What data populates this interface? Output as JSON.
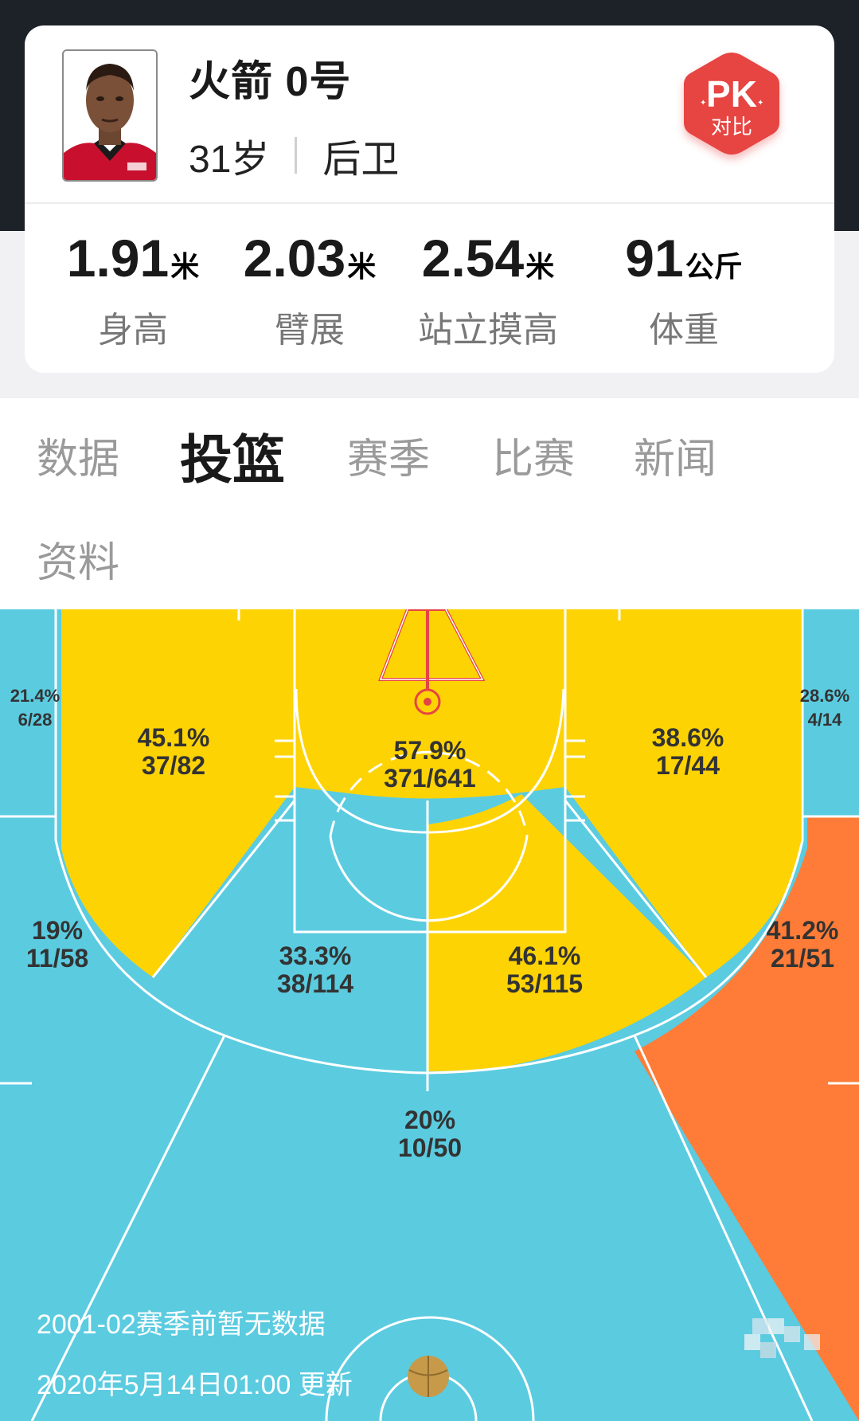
{
  "player": {
    "name": "火箭 0号",
    "age": "31岁",
    "position": "后卫"
  },
  "pk_button": {
    "top": "PK",
    "bottom": "对比"
  },
  "stats": [
    {
      "value": "1.91",
      "unit": "米",
      "label": "身高"
    },
    {
      "value": "2.03",
      "unit": "米",
      "label": "臂展"
    },
    {
      "value": "2.54",
      "unit": "米",
      "label": "站立摸高"
    },
    {
      "value": "91",
      "unit": "公斤",
      "label": "体重"
    }
  ],
  "tabs": [
    "数据",
    "投篮",
    "赛季",
    "比赛",
    "新闻",
    "资料"
  ],
  "active_tab": "投篮",
  "zones": [
    {
      "pct": "21.4%",
      "made": "6/28"
    },
    {
      "pct": "45.1%",
      "made": "37/82"
    },
    {
      "pct": "57.9%",
      "made": "371/641"
    },
    {
      "pct": "38.6%",
      "made": "17/44"
    },
    {
      "pct": "28.6%",
      "made": "4/14"
    },
    {
      "pct": "19%",
      "made": "11/58"
    },
    {
      "pct": "33.3%",
      "made": "38/114"
    },
    {
      "pct": "46.1%",
      "made": "53/115"
    },
    {
      "pct": "41.2%",
      "made": "21/51"
    },
    {
      "pct": "20%",
      "made": "10/50"
    }
  ],
  "notes": {
    "no_data": "2001-02赛季前暂无数据",
    "updated": "2020年5月14日01:00 更新"
  },
  "colors": {
    "cold": "#5bcbe0",
    "warm": "#fed304",
    "hot": "#fe7c37",
    "pk_red": "#e64443"
  }
}
